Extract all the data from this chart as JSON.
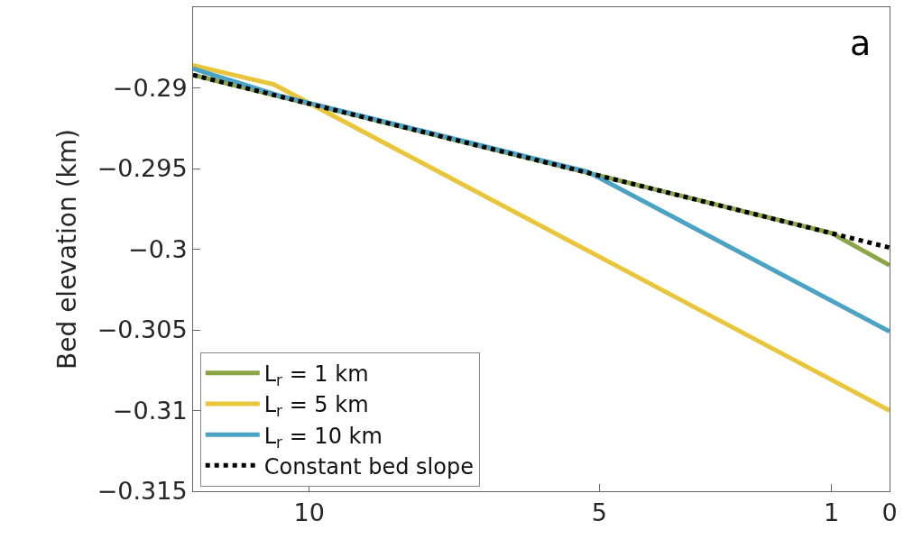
{
  "chart_data": {
    "type": "line",
    "ylabel": "Bed elevation (km)",
    "annotations": [
      "a"
    ],
    "xlim": [
      12,
      0
    ],
    "xticks": [
      10,
      5,
      1,
      0
    ],
    "ylim": [
      -0.315,
      -0.285
    ],
    "yticks": [
      -0.29,
      -0.295,
      -0.3,
      -0.305,
      -0.31,
      -0.315
    ],
    "legend": "bottom left",
    "marker": "none",
    "series": [
      {
        "name": "L$_{r}$ = 1 km",
        "color": "#8aa545",
        "x": [
          12,
          1,
          0
        ],
        "values": [
          -0.2892,
          -0.299,
          -0.301
        ]
      },
      {
        "name": "L$_{r}$ = 5 km",
        "color": "#e8c53a",
        "x": [
          12,
          10.6,
          0
        ],
        "values": [
          -0.2886,
          -0.2898,
          -0.31
        ]
      },
      {
        "name": "L$_{r}$ = 10 km",
        "color": "#4ba3c3",
        "x": [
          12,
          10.5,
          5.2,
          0
        ],
        "values": [
          -0.2888,
          -0.2905,
          -0.2952,
          -0.3051
        ]
      },
      {
        "name": "Constant bed slope",
        "color": "#000000",
        "line_style": "dotted",
        "x": [
          12,
          0
        ],
        "values": [
          -0.2892,
          -0.2999
        ]
      }
    ]
  }
}
